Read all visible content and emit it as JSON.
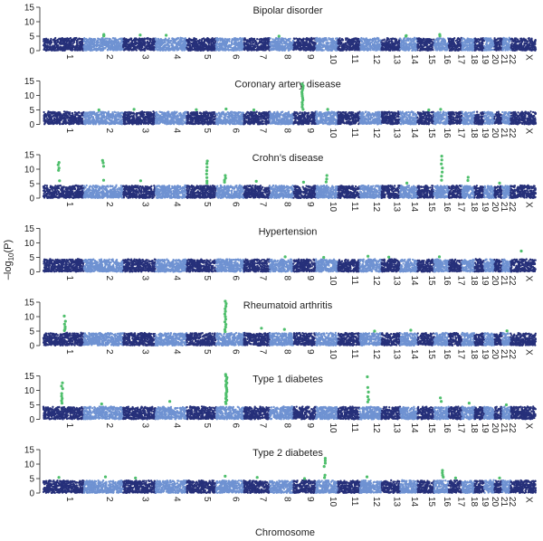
{
  "figure": {
    "ylabel_main": "–log",
    "ylabel_sub": "10",
    "ylabel_tail": "(P)",
    "xlabel": "Chromosome"
  },
  "chart_data": [
    {
      "type": "scatter",
      "title": "Bipolar disorder",
      "ylim": [
        0,
        15
      ],
      "yticks": [
        0,
        5,
        10,
        15
      ],
      "chromosomes": [
        "1",
        "2",
        "3",
        "4",
        "5",
        "6",
        "7",
        "8",
        "9",
        "10",
        "11",
        "12",
        "13",
        "14",
        "15",
        "16",
        "17",
        "18",
        "19",
        "20",
        "21",
        "22",
        "X"
      ],
      "baseline_max": 4.5,
      "hits": [
        {
          "chr": "2",
          "values": [
            5.2,
            5.6,
            5.1
          ]
        },
        {
          "chr": "3",
          "values": [
            5.4
          ]
        },
        {
          "chr": "4",
          "values": [
            5.3
          ]
        },
        {
          "chr": "8",
          "values": [
            5.0
          ]
        },
        {
          "chr": "14",
          "values": [
            5.2,
            5.0
          ]
        },
        {
          "chr": "16",
          "values": [
            5.6,
            5.1
          ]
        }
      ]
    },
    {
      "type": "scatter",
      "title": "Coronary artery disease",
      "ylim": [
        0,
        15
      ],
      "yticks": [
        0,
        5,
        10,
        15
      ],
      "chromosomes": [
        "1",
        "2",
        "3",
        "4",
        "5",
        "6",
        "7",
        "8",
        "9",
        "10",
        "11",
        "12",
        "13",
        "14",
        "15",
        "16",
        "17",
        "18",
        "19",
        "20",
        "21",
        "22",
        "X"
      ],
      "baseline_max": 4.5,
      "hits": [
        {
          "chr": "2",
          "values": [
            5.0
          ]
        },
        {
          "chr": "3",
          "values": [
            5.2
          ]
        },
        {
          "chr": "5",
          "values": [
            5.1
          ]
        },
        {
          "chr": "6",
          "values": [
            5.3
          ]
        },
        {
          "chr": "7",
          "values": [
            5.0
          ]
        },
        {
          "chr": "9",
          "values": [
            14.0,
            13.3,
            12.6,
            11.9,
            11.2,
            10.5,
            9.8,
            9.1,
            8.4,
            7.6,
            6.8,
            6.0,
            5.2
          ]
        },
        {
          "chr": "10",
          "values": [
            5.2
          ]
        },
        {
          "chr": "15",
          "values": [
            5.0
          ]
        },
        {
          "chr": "16",
          "values": [
            5.2
          ]
        }
      ]
    },
    {
      "type": "scatter",
      "title": "Crohn’s disease",
      "ylim": [
        0,
        15
      ],
      "yticks": [
        0,
        5,
        10,
        15
      ],
      "chromosomes": [
        "1",
        "2",
        "3",
        "4",
        "5",
        "6",
        "7",
        "8",
        "9",
        "10",
        "11",
        "12",
        "13",
        "14",
        "15",
        "16",
        "17",
        "18",
        "19",
        "20",
        "21",
        "22",
        "X"
      ],
      "baseline_max": 4.5,
      "hits": [
        {
          "chr": "1",
          "values": [
            12.3,
            11.5,
            10.4,
            9.6,
            6.0
          ]
        },
        {
          "chr": "2",
          "values": [
            13.0,
            12.2,
            11.0,
            6.2
          ]
        },
        {
          "chr": "3",
          "values": [
            6.0
          ]
        },
        {
          "chr": "5",
          "values": [
            12.8,
            11.9,
            10.7,
            9.5,
            8.3,
            7.1,
            5.9,
            5.2
          ]
        },
        {
          "chr": "6",
          "values": [
            7.8,
            6.9,
            6.2,
            5.5
          ]
        },
        {
          "chr": "7",
          "values": [
            5.8
          ]
        },
        {
          "chr": "9",
          "values": [
            5.5
          ]
        },
        {
          "chr": "10",
          "values": [
            7.8,
            6.6,
            5.6
          ]
        },
        {
          "chr": "14",
          "values": [
            5.2
          ]
        },
        {
          "chr": "16",
          "values": [
            14.5,
            13.2,
            11.8,
            10.4,
            9.0,
            7.6,
            6.2
          ]
        },
        {
          "chr": "18",
          "values": [
            7.2,
            6.1
          ]
        },
        {
          "chr": "21",
          "values": [
            5.2
          ]
        }
      ]
    },
    {
      "type": "scatter",
      "title": "Hypertension",
      "ylim": [
        0,
        15
      ],
      "yticks": [
        0,
        5,
        10,
        15
      ],
      "chromosomes": [
        "1",
        "2",
        "3",
        "4",
        "5",
        "6",
        "7",
        "8",
        "9",
        "10",
        "11",
        "12",
        "13",
        "14",
        "15",
        "16",
        "17",
        "18",
        "19",
        "20",
        "21",
        "22",
        "X"
      ],
      "baseline_max": 4.5,
      "hits": [
        {
          "chr": "8",
          "values": [
            5.2
          ]
        },
        {
          "chr": "10",
          "values": [
            5.0
          ]
        },
        {
          "chr": "12",
          "values": [
            5.4
          ]
        },
        {
          "chr": "13",
          "values": [
            5.1
          ]
        },
        {
          "chr": "16",
          "values": [
            5.2
          ]
        },
        {
          "chr": "X",
          "values": [
            7.2
          ]
        }
      ]
    },
    {
      "type": "scatter",
      "title": "Rheumatoid arthritis",
      "ylim": [
        0,
        15
      ],
      "yticks": [
        0,
        5,
        10,
        15
      ],
      "chromosomes": [
        "1",
        "2",
        "3",
        "4",
        "5",
        "6",
        "7",
        "8",
        "9",
        "10",
        "11",
        "12",
        "13",
        "14",
        "15",
        "16",
        "17",
        "18",
        "19",
        "20",
        "21",
        "22",
        "X"
      ],
      "baseline_max": 4.5,
      "hits": [
        {
          "chr": "1",
          "values": [
            10.2,
            8.4,
            7.4,
            6.5,
            5.8,
            5.2
          ]
        },
        {
          "chr": "6",
          "values": [
            15.3,
            14.5,
            13.6,
            12.7,
            11.8,
            10.9,
            10.0,
            9.1,
            8.2,
            7.3,
            6.4,
            5.5,
            4.8
          ]
        },
        {
          "chr": "7",
          "values": [
            6.0
          ]
        },
        {
          "chr": "8",
          "values": [
            5.6
          ]
        },
        {
          "chr": "12",
          "values": [
            5.0
          ]
        },
        {
          "chr": "14",
          "values": [
            5.3
          ]
        },
        {
          "chr": "22",
          "values": [
            5.1
          ]
        }
      ]
    },
    {
      "type": "scatter",
      "title": "Type 1 diabetes",
      "ylim": [
        0,
        15
      ],
      "yticks": [
        0,
        5,
        10,
        15
      ],
      "chromosomes": [
        "1",
        "2",
        "3",
        "4",
        "5",
        "6",
        "7",
        "8",
        "9",
        "10",
        "11",
        "12",
        "13",
        "14",
        "15",
        "16",
        "17",
        "18",
        "19",
        "20",
        "21",
        "22",
        "X"
      ],
      "baseline_max": 4.5,
      "hits": [
        {
          "chr": "1",
          "values": [
            12.6,
            11.5,
            10.6,
            8.9,
            8.0,
            7.2,
            6.4,
            5.6
          ]
        },
        {
          "chr": "2",
          "values": [
            5.3
          ]
        },
        {
          "chr": "4",
          "values": [
            6.2
          ]
        },
        {
          "chr": "6",
          "values": [
            15.5,
            15.0,
            14.4,
            13.8,
            13.2,
            12.6,
            12.0,
            11.4,
            10.8,
            10.2,
            9.6,
            9.0,
            8.4,
            7.8,
            7.2,
            6.6,
            6.0,
            5.4
          ]
        },
        {
          "chr": "12",
          "values": [
            14.7,
            11.0,
            9.4,
            7.8,
            6.8,
            6.0
          ]
        },
        {
          "chr": "16",
          "values": [
            7.4,
            6.2
          ]
        },
        {
          "chr": "18",
          "values": [
            5.6
          ]
        },
        {
          "chr": "22",
          "values": [
            5.0
          ]
        }
      ]
    },
    {
      "type": "scatter",
      "title": "Type 2 diabetes",
      "ylim": [
        0,
        15
      ],
      "yticks": [
        0,
        5,
        10,
        15
      ],
      "chromosomes": [
        "1",
        "2",
        "3",
        "4",
        "5",
        "6",
        "7",
        "8",
        "9",
        "10",
        "11",
        "12",
        "13",
        "14",
        "15",
        "16",
        "17",
        "18",
        "19",
        "20",
        "21",
        "22",
        "X"
      ],
      "baseline_max": 4.5,
      "hits": [
        {
          "chr": "1",
          "values": [
            5.4
          ]
        },
        {
          "chr": "2",
          "values": [
            5.6
          ]
        },
        {
          "chr": "3",
          "values": [
            5.2
          ]
        },
        {
          "chr": "6",
          "values": [
            5.8
          ]
        },
        {
          "chr": "7",
          "values": [
            5.4
          ]
        },
        {
          "chr": "9",
          "values": [
            5.0
          ]
        },
        {
          "chr": "10",
          "values": [
            12.0,
            11.2,
            10.3,
            9.2,
            6.2,
            5.3
          ]
        },
        {
          "chr": "12",
          "values": [
            5.6
          ]
        },
        {
          "chr": "16",
          "values": [
            7.8,
            7.0,
            6.2,
            5.5
          ]
        },
        {
          "chr": "17",
          "values": [
            5.2
          ]
        },
        {
          "chr": "21",
          "values": [
            5.2
          ]
        }
      ]
    }
  ]
}
